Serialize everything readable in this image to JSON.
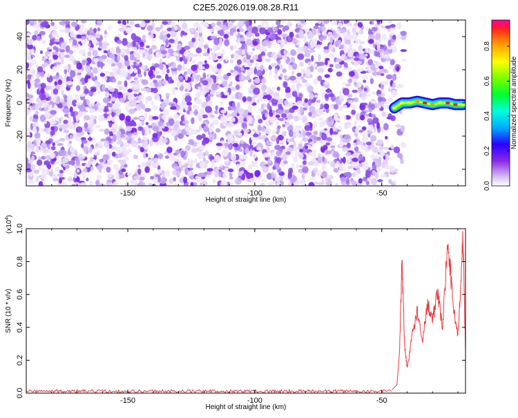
{
  "title": "C2E5.2026.019.08.28.R11",
  "chart_data": [
    {
      "type": "heatmap",
      "xlabel": "Height of straight line (km)",
      "ylabel": "Frequency (Hz)",
      "xlim": [
        -190,
        -17
      ],
      "ylim": [
        -50,
        50
      ],
      "xticks": [
        -150,
        -100,
        -50
      ],
      "yticks": [
        -40,
        -20,
        0,
        20,
        40
      ],
      "noise_region_x": [
        -190,
        -45
      ],
      "signal_trace": {
        "x": [
          -45,
          -42,
          -39,
          -36,
          -33,
          -30,
          -27,
          -24,
          -21,
          -18
        ],
        "y": [
          -3,
          0,
          0,
          1,
          0,
          -1,
          0,
          0,
          -1,
          -1
        ],
        "amplitude": [
          0.35,
          0.5,
          0.7,
          0.85,
          0.95,
          0.8,
          0.75,
          0.95,
          0.9,
          0.7
        ]
      },
      "colorbar": {
        "label": "Normalized spectral amplitude",
        "range": [
          0,
          0.95
        ],
        "ticks": [
          0.0,
          0.2,
          0.4,
          0.6,
          0.8
        ]
      },
      "grid": false
    },
    {
      "type": "line",
      "xlabel": "Height of straight line (km)",
      "ylabel": "SNR (10 * v/v)",
      "y_multiplier": "(x10^4)",
      "multiplier_base": "(x10",
      "multiplier_exp": "4",
      "multiplier_close": ")",
      "xlim": [
        -190,
        -17
      ],
      "ylim": [
        0,
        1.0
      ],
      "xticks": [
        -150,
        -100,
        -50
      ],
      "yticks": [
        0.0,
        0.2,
        0.4,
        0.6,
        0.8,
        1.0
      ],
      "color": "#e8383a",
      "series": [
        {
          "x": [
            -190,
            -150,
            -100,
            -60,
            -50,
            -46,
            -44,
            -43,
            -42,
            -41,
            -40,
            -38,
            -36,
            -34,
            -32,
            -30,
            -28,
            -26,
            -24,
            -22,
            -20,
            -19,
            -18,
            -17
          ],
          "values": [
            0.01,
            0.01,
            0.01,
            0.01,
            0.01,
            0.02,
            0.05,
            0.25,
            0.8,
            0.3,
            0.15,
            0.35,
            0.5,
            0.3,
            0.55,
            0.45,
            0.6,
            0.4,
            0.95,
            0.55,
            0.35,
            0.6,
            0.98,
            0.25
          ]
        }
      ],
      "grid": false
    }
  ]
}
